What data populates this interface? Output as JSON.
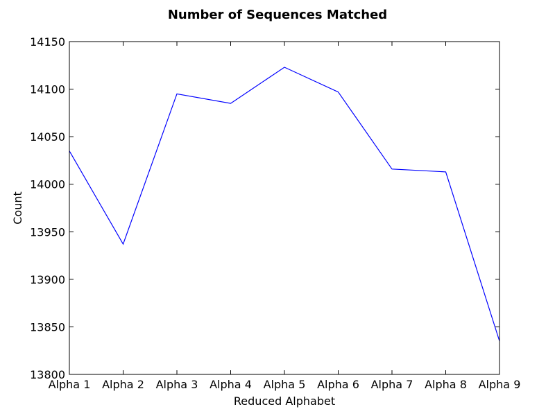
{
  "chart_data": {
    "type": "line",
    "title": "Number of Sequences Matched",
    "xlabel": "Reduced Alphabet",
    "ylabel": "Count",
    "categories": [
      "Alpha 1",
      "Alpha 2",
      "Alpha 3",
      "Alpha 4",
      "Alpha 5",
      "Alpha 6",
      "Alpha 7",
      "Alpha 8",
      "Alpha 9"
    ],
    "series": [
      {
        "values": [
          14035,
          13937,
          14095,
          14085,
          14123,
          14097,
          14016,
          14013,
          13835
        ],
        "color": "#0000ff"
      }
    ],
    "ylim": [
      13800,
      14150
    ],
    "yticks": [
      13800,
      13850,
      13900,
      13950,
      14000,
      14050,
      14100,
      14150
    ],
    "grid": false,
    "legend": false
  }
}
